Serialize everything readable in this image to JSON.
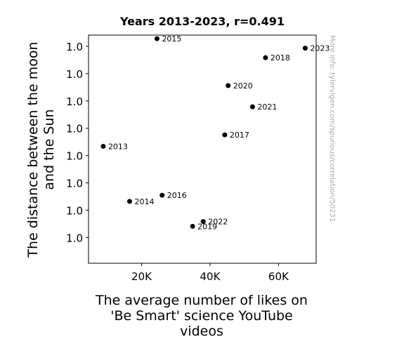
{
  "chart_data": {
    "type": "scatter",
    "title": "Years 2013-2023, r=0.491",
    "xlabel_lines": [
      "The average number of likes on",
      "'Be Smart' science  YouTube",
      "videos"
    ],
    "ylabel_lines": [
      "The distance between the moon",
      "and the Sun"
    ],
    "watermark": "More info: tylervigen.com/spurious/correlation/50231",
    "xlim": [
      4500,
      71000
    ],
    "x_ticks": [
      {
        "value": 20000,
        "label": "20K"
      },
      {
        "value": 40000,
        "label": "40K"
      },
      {
        "value": 60000,
        "label": "60K"
      }
    ],
    "y_tick_labels": [
      "1.0",
      "1.0",
      "1.0",
      "1.0",
      "1.0",
      "1.0",
      "1.0",
      "1.0"
    ],
    "point_color": "#000000",
    "points": [
      {
        "label": "2013",
        "x": 8800,
        "y": 0.5125
      },
      {
        "label": "2014",
        "x": 16500,
        "y": 0.2711
      },
      {
        "label": "2015",
        "x": 24500,
        "y": 0.9844
      },
      {
        "label": "2016",
        "x": 26000,
        "y": 0.2981
      },
      {
        "label": "2017",
        "x": 44300,
        "y": 0.5626
      },
      {
        "label": "2018",
        "x": 56200,
        "y": 0.901
      },
      {
        "label": "2019",
        "x": 34900,
        "y": 0.1621
      },
      {
        "label": "2020",
        "x": 45300,
        "y": 0.7789
      },
      {
        "label": "2021",
        "x": 52400,
        "y": 0.6856
      },
      {
        "label": "2022",
        "x": 38000,
        "y": 0.1826
      },
      {
        "label": "2023",
        "x": 67800,
        "y": 0.9428
      }
    ]
  }
}
